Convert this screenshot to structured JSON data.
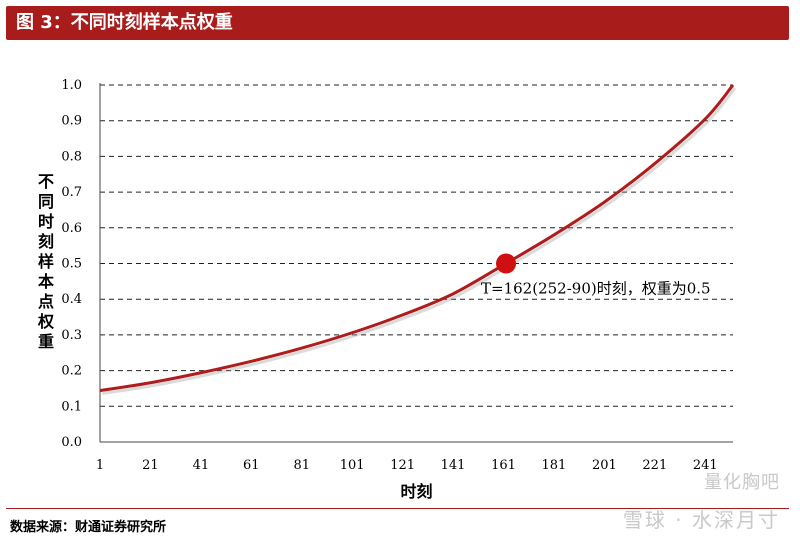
{
  "header": {
    "title": "图 3：不同时刻样本点权重"
  },
  "footer": {
    "source": "数据来源：财通证券研究所"
  },
  "watermark": {
    "line1": "量化胸吧",
    "line2": "雪球 · 水深月寸"
  },
  "chart_data": {
    "type": "line",
    "title": "",
    "xlabel": "时刻",
    "ylabel": "不同时刻样本点权重",
    "xlim": [
      1,
      252
    ],
    "ylim": [
      0,
      1.0
    ],
    "x_ticks": [
      1,
      21,
      41,
      61,
      81,
      101,
      121,
      141,
      161,
      181,
      201,
      221,
      241
    ],
    "y_ticks": [
      0.0,
      0.1,
      0.2,
      0.3,
      0.4,
      0.5,
      0.6,
      0.7,
      0.8,
      0.9,
      1.0
    ],
    "y_tick_labels": [
      "0.0",
      "0.1",
      "0.2",
      "0.3",
      "0.4",
      "0.5",
      "0.6",
      "0.7",
      "0.8",
      "0.9",
      "1.0"
    ],
    "grid": "horizontal-dashed",
    "series": [
      {
        "color": "#b01c1c",
        "x": [
          1,
          21,
          41,
          61,
          81,
          101,
          121,
          141,
          161,
          181,
          201,
          221,
          241,
          252
        ],
        "y": [
          0.144,
          0.166,
          0.194,
          0.226,
          0.263,
          0.306,
          0.356,
          0.415,
          0.496,
          0.58,
          0.672,
          0.78,
          0.905,
          1.0
        ]
      }
    ],
    "highlight_point": {
      "x": 162,
      "y": 0.5,
      "color": "#d01010"
    },
    "annotation": "T=162(252-90)时刻，权重为0.5"
  }
}
